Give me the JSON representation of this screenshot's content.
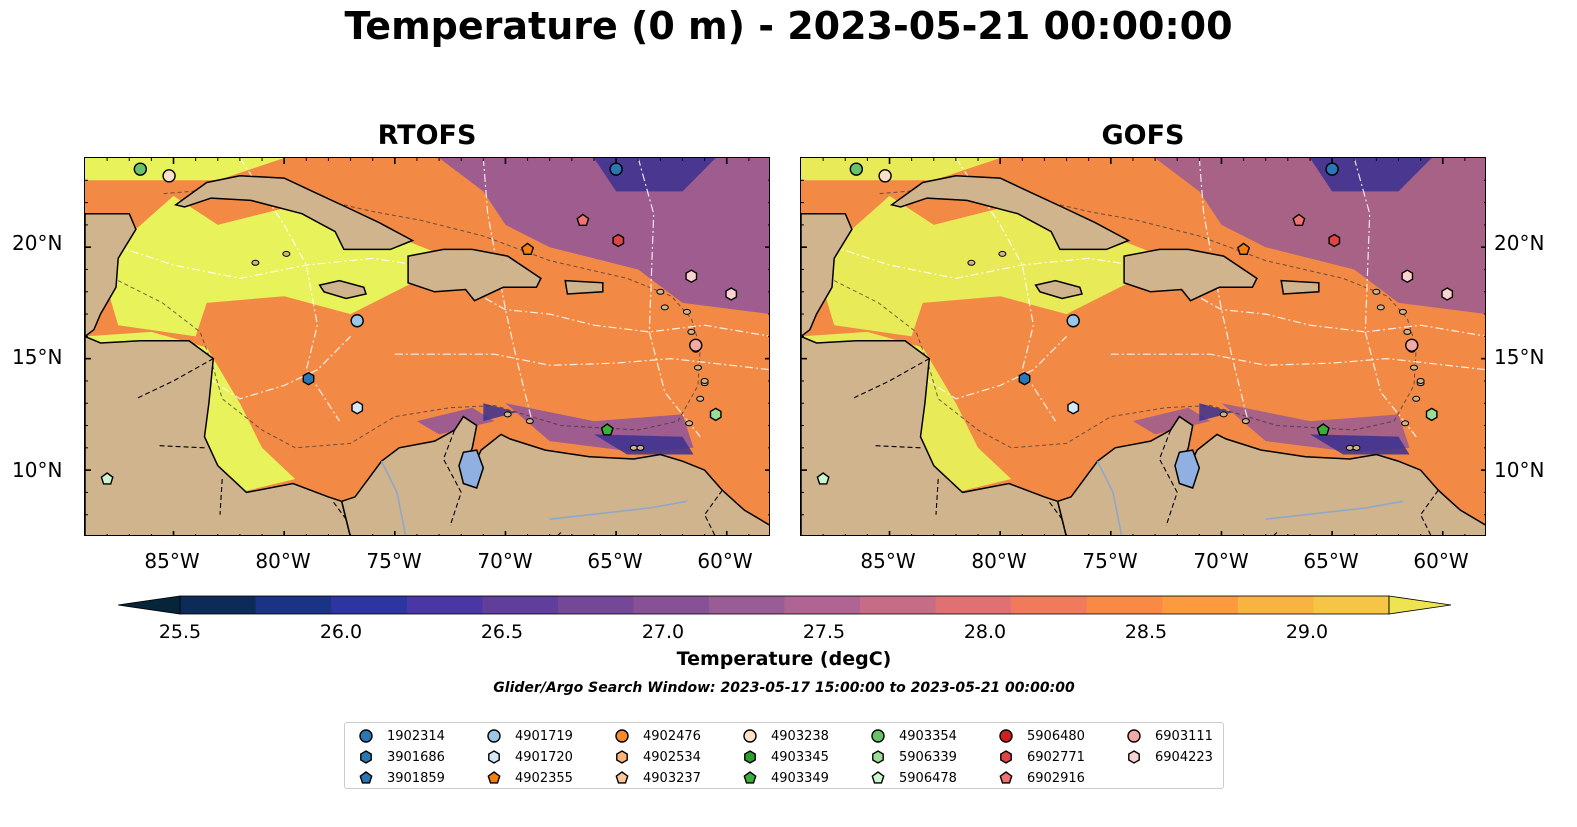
{
  "title": "Temperature (0 m) - 2023-05-21 00:00:00",
  "panels": [
    {
      "title": "RTOFS"
    },
    {
      "title": "GOFS"
    }
  ],
  "axes": {
    "latitude_labels": [
      "20°N",
      "15°N",
      "10°N"
    ],
    "longitude_labels": [
      "85°W",
      "80°W",
      "75°W",
      "70°W",
      "65°W",
      "60°W"
    ],
    "lon_range": [
      -89,
      -58
    ],
    "lat_range": [
      7,
      24
    ]
  },
  "colorbar": {
    "label": "Temperature (degC)",
    "ticks": [
      "25.5",
      "26.0",
      "26.5",
      "27.0",
      "27.5",
      "28.0",
      "28.5",
      "29.0"
    ],
    "range": [
      25.5,
      29.25
    ],
    "step": 0.25,
    "extend": "both",
    "colors": [
      "#06243a",
      "#0d2b59",
      "#1a3385",
      "#2c35a0",
      "#4a37a5",
      "#5f3e9c",
      "#744896",
      "#875295",
      "#9a5c95",
      "#b06493",
      "#c76c86",
      "#df7172",
      "#ef7b5c",
      "#f98a45",
      "#fb9b3d",
      "#f9b340",
      "#f5c546",
      "#eee452"
    ]
  },
  "search_window": "Glider/Argo Search Window: 2023-05-17 15:00:00 to 2023-05-21 00:00:00",
  "map_colors": {
    "land": "#d0b48d",
    "lake": "#8fb0e0",
    "warm_sea": "#e8f25a",
    "mid_sea": "#f28a45",
    "cool_sea": "#9a5a92",
    "cold_sea": "#3a3090"
  },
  "floats": [
    {
      "id": "1902314",
      "marker": "circle",
      "color": "#2a77b4",
      "lon": -65.0,
      "lat": 23.5
    },
    {
      "id": "3901686",
      "marker": "hexagon",
      "color": "#2a77b4",
      "lon": -78.9,
      "lat": 14.1
    },
    {
      "id": "3901859",
      "marker": "pentagon",
      "color": "#2a77b4",
      "lon": null,
      "lat": null
    },
    {
      "id": "4901719",
      "marker": "circle",
      "color": "#9bc6e6",
      "lon": -76.7,
      "lat": 16.7
    },
    {
      "id": "4901720",
      "marker": "hexagon",
      "color": "#d4e8f7",
      "lon": -76.7,
      "lat": 12.8
    },
    {
      "id": "4902355",
      "marker": "pentagon",
      "color": "#f57f10",
      "lon": -69.0,
      "lat": 19.9
    },
    {
      "id": "4902476",
      "marker": "circle",
      "color": "#f58b2a",
      "lon": null,
      "lat": null
    },
    {
      "id": "4902534",
      "marker": "hexagon",
      "color": "#fbb47a",
      "lon": null,
      "lat": null
    },
    {
      "id": "4903237",
      "marker": "pentagon",
      "color": "#fcc79b",
      "lon": null,
      "lat": null
    },
    {
      "id": "4903238",
      "marker": "circle",
      "color": "#fde1c7",
      "lon": -85.2,
      "lat": 23.2
    },
    {
      "id": "4903345",
      "marker": "hexagon",
      "color": "#2e9d2e",
      "lon": null,
      "lat": null
    },
    {
      "id": "4903349",
      "marker": "pentagon",
      "color": "#3ab03a",
      "lon": -65.4,
      "lat": 11.8
    },
    {
      "id": "4903354",
      "marker": "circle",
      "color": "#69c269",
      "lon": -86.5,
      "lat": 23.5
    },
    {
      "id": "5906339",
      "marker": "hexagon",
      "color": "#99dd99",
      "lon": -60.5,
      "lat": 12.5
    },
    {
      "id": "5906478",
      "marker": "pentagon",
      "color": "#cdf5cd",
      "lon": -88.0,
      "lat": 9.6
    },
    {
      "id": "5906480",
      "marker": "circle",
      "color": "#d01f1f",
      "lon": null,
      "lat": null
    },
    {
      "id": "6902771",
      "marker": "hexagon",
      "color": "#e04545",
      "lon": -64.9,
      "lat": 20.3
    },
    {
      "id": "6902916",
      "marker": "pentagon",
      "color": "#f07272",
      "lon": -66.5,
      "lat": 21.2
    },
    {
      "id": "6903111",
      "marker": "circle",
      "color": "#f4a9a9",
      "lon": -61.4,
      "lat": 15.6
    },
    {
      "id": "6904223",
      "marker": "hexagon",
      "color": "#fbd2d2",
      "lon": -59.8,
      "lat": 17.9
    },
    {
      "id": "6904223b",
      "marker": "hexagon",
      "color": "#fbd2d2",
      "lon": -61.6,
      "lat": 18.7
    }
  ],
  "legend_ids": [
    "1902314",
    "3901686",
    "3901859",
    "4901719",
    "4901720",
    "4902355",
    "4902476",
    "4902534",
    "4903237",
    "4903238",
    "4903345",
    "4903349",
    "4903354",
    "5906339",
    "5906478",
    "5906480",
    "6902771",
    "6902916",
    "6903111",
    "6904223"
  ]
}
